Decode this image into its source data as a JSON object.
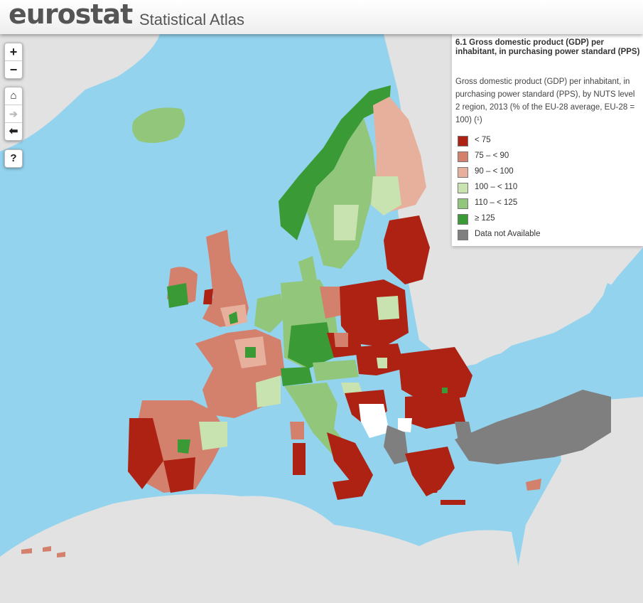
{
  "header": {
    "brand": "eurostat",
    "subtitle": "Statistical Atlas"
  },
  "controls": {
    "zoom_in": "+",
    "zoom_out": "−",
    "home": "⌂",
    "forward": "➔",
    "back": "⬅",
    "help": "?"
  },
  "legend": {
    "title": "6.1 Gross domestic product (GDP) per inhabitant, in purchasing power standard (PPS)",
    "description": "Gross domestic product (GDP) per inhabitant, in purchasing power standard (PPS), by NUTS level 2 region, 2013 (% of the EU-28 average, EU-28 = 100) (¹)",
    "items": [
      {
        "label": "< 75",
        "color": "#ad2213"
      },
      {
        "label": "75 – < 90",
        "color": "#d3806c"
      },
      {
        "label": "90 – < 100",
        "color": "#e7b09d"
      },
      {
        "label": "100 – < 110",
        "color": "#c9e3b0"
      },
      {
        "label": "110 – < 125",
        "color": "#92c67a"
      },
      {
        "label": "≥ 125",
        "color": "#3a9a35"
      },
      {
        "label": "Data not Available",
        "color": "#7f7f7f"
      }
    ]
  },
  "colors": {
    "sea": "#93d3ee",
    "land_non_eu": "#e2e2e2",
    "no_data": "#7f7f7f",
    "white_region": "#ffffff"
  }
}
